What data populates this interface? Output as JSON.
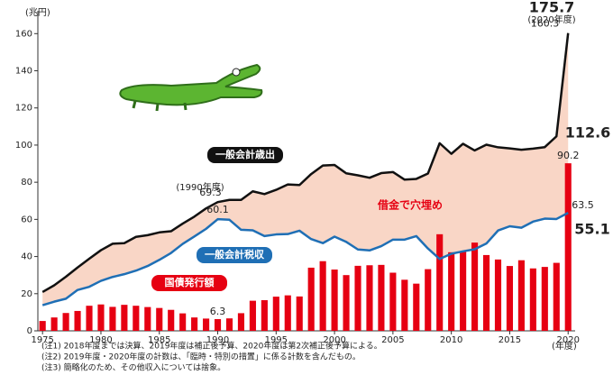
{
  "chart_data": {
    "type": "bar-line",
    "y_unit": "(兆円)",
    "x_unit": "(年度)",
    "x": [
      1975,
      1976,
      1977,
      1978,
      1979,
      1980,
      1981,
      1982,
      1983,
      1984,
      1985,
      1986,
      1987,
      1988,
      1989,
      1990,
      1991,
      1992,
      1993,
      1994,
      1995,
      1996,
      1997,
      1998,
      1999,
      2000,
      2001,
      2002,
      2003,
      2004,
      2005,
      2006,
      2007,
      2008,
      2009,
      2010,
      2011,
      2012,
      2013,
      2014,
      2015,
      2016,
      2017,
      2018,
      2019,
      2020
    ],
    "xlim": [
      1974.6,
      2020.6
    ],
    "xticks": [
      1975,
      1980,
      1985,
      1990,
      1995,
      2000,
      2005,
      2010,
      2015,
      2020
    ],
    "ylim": [
      0,
      165
    ],
    "yticks": [
      0,
      20,
      40,
      60,
      80,
      100,
      120,
      140,
      160
    ],
    "area_color": "#f9d6c6",
    "area_label": "借金で穴埋め",
    "series": [
      {
        "name": "一般会計歳出",
        "kind": "line",
        "color": "#111111",
        "values": [
          20.9,
          24.5,
          29.1,
          34.1,
          38.8,
          43.4,
          46.9,
          47.2,
          50.6,
          51.5,
          53.0,
          53.6,
          57.7,
          61.5,
          65.9,
          69.3,
          70.5,
          70.5,
          75.1,
          73.6,
          75.9,
          78.8,
          78.5,
          84.4,
          89.0,
          89.3,
          84.8,
          83.7,
          82.4,
          84.9,
          85.5,
          81.4,
          81.8,
          84.7,
          101.0,
          95.3,
          100.7,
          97.1,
          100.2,
          98.8,
          98.2,
          97.5,
          98.1,
          98.9,
          104.7,
          160.3
        ],
        "value_labels": [
          null,
          null,
          null,
          null,
          null,
          null,
          null,
          null,
          null,
          null,
          null,
          null,
          null,
          null,
          null,
          "69.3",
          null,
          null,
          null,
          null,
          null,
          null,
          null,
          null,
          null,
          null,
          null,
          null,
          null,
          null,
          null,
          null,
          null,
          null,
          null,
          null,
          null,
          null,
          null,
          null,
          null,
          null,
          null,
          null,
          null,
          "160.3"
        ]
      },
      {
        "name": "一般会計税収",
        "kind": "line",
        "color": "#1f6fb5",
        "values": [
          13.8,
          15.7,
          17.3,
          22.0,
          23.7,
          26.9,
          29.0,
          30.5,
          32.4,
          34.9,
          38.2,
          41.9,
          46.8,
          50.8,
          54.9,
          60.1,
          59.8,
          54.4,
          54.1,
          51.0,
          51.9,
          52.1,
          53.9,
          49.4,
          47.2,
          50.7,
          47.9,
          43.8,
          43.3,
          45.6,
          49.1,
          49.1,
          51.0,
          44.3,
          38.7,
          41.5,
          42.8,
          43.9,
          47.0,
          54.0,
          56.3,
          55.5,
          58.8,
          60.4,
          60.2,
          63.5
        ],
        "value_labels": [
          null,
          null,
          null,
          null,
          null,
          null,
          null,
          null,
          null,
          null,
          null,
          null,
          null,
          null,
          null,
          "60.1",
          null,
          null,
          null,
          null,
          null,
          null,
          null,
          null,
          null,
          null,
          null,
          null,
          null,
          null,
          null,
          null,
          null,
          null,
          null,
          null,
          null,
          null,
          null,
          null,
          null,
          null,
          null,
          null,
          null,
          "63.5"
        ]
      },
      {
        "name": "国債発行額",
        "kind": "bar",
        "color": "#e60012",
        "values": [
          5.3,
          7.2,
          9.6,
          10.7,
          13.5,
          14.2,
          12.9,
          14.0,
          13.5,
          12.8,
          12.3,
          11.3,
          9.4,
          7.2,
          6.6,
          6.3,
          6.7,
          9.5,
          16.2,
          16.5,
          18.4,
          19.1,
          18.5,
          34.0,
          37.5,
          33.0,
          30.0,
          35.0,
          35.3,
          35.5,
          31.3,
          27.5,
          25.4,
          33.2,
          52.0,
          42.3,
          42.8,
          47.5,
          40.8,
          38.4,
          34.9,
          38.0,
          33.6,
          34.4,
          36.6,
          90.2
        ],
        "value_labels": [
          null,
          null,
          null,
          null,
          null,
          null,
          null,
          null,
          null,
          null,
          null,
          null,
          null,
          null,
          null,
          "6.3",
          null,
          null,
          null,
          null,
          null,
          null,
          null,
          null,
          null,
          null,
          null,
          null,
          null,
          null,
          null,
          null,
          null,
          null,
          null,
          null,
          null,
          null,
          null,
          null,
          null,
          null,
          null,
          null,
          null,
          "90.2"
        ]
      }
    ],
    "annotations": [
      "175.7",
      "(2020年度)",
      "112.6",
      "55.1",
      "(1990年度)"
    ],
    "notes": [
      "(注1) 2018年度までは決算、2019年度は補正後予算、2020年度は第2次補正後予算による。",
      "(注2) 2019年度・2020年度の計数は、「臨時・特別の措置」に係る計数を含んだもの。",
      "(注3) 簡略化のため、その他収入については捨象。"
    ]
  }
}
